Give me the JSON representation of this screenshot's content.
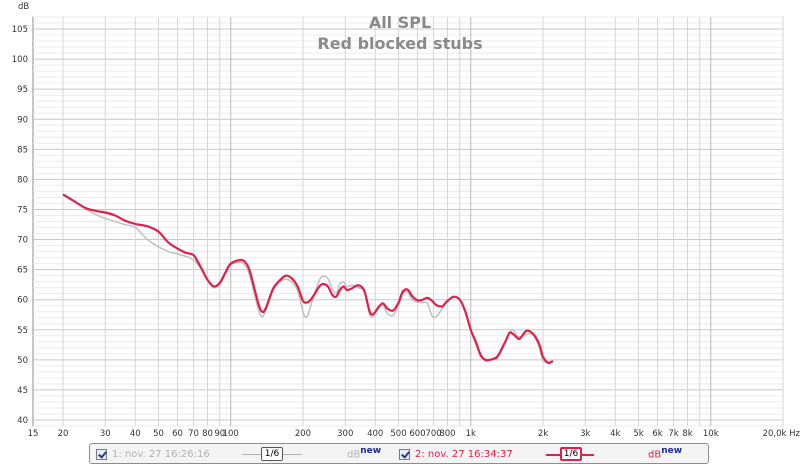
{
  "chart_data": {
    "type": "line",
    "title": "All SPL",
    "subtitle": "Red blocked stubs",
    "y_unit": "dB",
    "x_unit": "Hz",
    "xscale": "log",
    "xlim": [
      15,
      20000
    ],
    "ylim": [
      39,
      107
    ],
    "grid": true,
    "y_ticks": [
      40,
      45,
      50,
      55,
      60,
      65,
      70,
      75,
      80,
      85,
      90,
      95,
      100,
      105
    ],
    "x_ticks": [
      {
        "v": 15,
        "label": "15"
      },
      {
        "v": 20,
        "label": "20"
      },
      {
        "v": 30,
        "label": "30"
      },
      {
        "v": 40,
        "label": "40"
      },
      {
        "v": 50,
        "label": "50"
      },
      {
        "v": 60,
        "label": "60"
      },
      {
        "v": 70,
        "label": "70"
      },
      {
        "v": 80,
        "label": "80"
      },
      {
        "v": 90,
        "label": "90"
      },
      {
        "v": 100,
        "label": "100"
      },
      {
        "v": 200,
        "label": "200"
      },
      {
        "v": 300,
        "label": "300"
      },
      {
        "v": 400,
        "label": "400"
      },
      {
        "v": 500,
        "label": "500"
      },
      {
        "v": 600,
        "label": "600"
      },
      {
        "v": 700,
        "label": "700"
      },
      {
        "v": 800,
        "label": "800"
      },
      {
        "v": 1000,
        "label": "1k"
      },
      {
        "v": 2000,
        "label": "2k"
      },
      {
        "v": 3000,
        "label": "3k"
      },
      {
        "v": 4000,
        "label": "4k"
      },
      {
        "v": 5000,
        "label": "5k"
      },
      {
        "v": 6000,
        "label": "6k"
      },
      {
        "v": 7000,
        "label": "7k"
      },
      {
        "v": 8000,
        "label": "8k"
      },
      {
        "v": 10000,
        "label": "10k"
      },
      {
        "v": 20000,
        "label": "20,0k Hz"
      }
    ],
    "series": [
      {
        "name": "1: nov. 27 16:26:16",
        "color": "#c0c0c0",
        "points": [
          [
            20,
            77.5
          ],
          [
            22,
            76.5
          ],
          [
            25,
            75.0
          ],
          [
            28,
            74.0
          ],
          [
            30,
            73.5
          ],
          [
            33,
            73.0
          ],
          [
            36,
            72.5
          ],
          [
            40,
            72.0
          ],
          [
            45,
            70.0
          ],
          [
            50,
            68.8
          ],
          [
            55,
            68.0
          ],
          [
            60,
            67.6
          ],
          [
            65,
            67.2
          ],
          [
            70,
            66.6
          ],
          [
            75,
            65.2
          ],
          [
            80,
            63.2
          ],
          [
            85,
            62.0
          ],
          [
            90,
            62.6
          ],
          [
            95,
            64.3
          ],
          [
            100,
            65.8
          ],
          [
            110,
            66.2
          ],
          [
            115,
            65.6
          ],
          [
            120,
            64.0
          ],
          [
            130,
            58.5
          ],
          [
            135,
            57.2
          ],
          [
            140,
            58.2
          ],
          [
            150,
            61.5
          ],
          [
            160,
            63.0
          ],
          [
            170,
            63.4
          ],
          [
            180,
            62.9
          ],
          [
            190,
            61.5
          ],
          [
            200,
            58.0
          ],
          [
            205,
            57.1
          ],
          [
            210,
            57.5
          ],
          [
            220,
            60.2
          ],
          [
            235,
            63.4
          ],
          [
            245,
            63.9
          ],
          [
            255,
            63.4
          ],
          [
            265,
            61.8
          ],
          [
            275,
            61.0
          ],
          [
            285,
            62.6
          ],
          [
            295,
            62.9
          ],
          [
            305,
            62.2
          ],
          [
            320,
            62.4
          ],
          [
            340,
            62.0
          ],
          [
            360,
            61.3
          ],
          [
            380,
            57.5
          ],
          [
            395,
            57.3
          ],
          [
            410,
            58.5
          ],
          [
            430,
            59.1
          ],
          [
            450,
            57.7
          ],
          [
            475,
            57.4
          ],
          [
            500,
            59.0
          ],
          [
            520,
            60.9
          ],
          [
            545,
            61.3
          ],
          [
            570,
            60.0
          ],
          [
            600,
            59.6
          ],
          [
            630,
            59.5
          ],
          [
            660,
            59.4
          ],
          [
            690,
            57.3
          ],
          [
            720,
            57.2
          ],
          [
            760,
            58.5
          ],
          [
            800,
            59.8
          ],
          [
            850,
            60.4
          ],
          [
            900,
            60.0
          ],
          [
            950,
            58.0
          ],
          [
            1000,
            55.0
          ],
          [
            1050,
            52.6
          ],
          [
            1100,
            50.5
          ],
          [
            1150,
            49.8
          ],
          [
            1200,
            49.9
          ],
          [
            1250,
            50.1
          ],
          [
            1300,
            50.5
          ],
          [
            1400,
            53.0
          ],
          [
            1450,
            54.5
          ],
          [
            1500,
            55.0
          ],
          [
            1550,
            54.1
          ],
          [
            1600,
            53.8
          ],
          [
            1700,
            54.2
          ],
          [
            1800,
            54.3
          ],
          [
            1900,
            52.8
          ],
          [
            1950,
            51.5
          ],
          [
            2000,
            49.8
          ],
          [
            2100,
            49.6
          ],
          [
            2200,
            49.8
          ]
        ]
      },
      {
        "name": "2: nov. 27 16:34:37",
        "color": "#e0204a",
        "points": [
          [
            20,
            77.5
          ],
          [
            22,
            76.5
          ],
          [
            25,
            75.2
          ],
          [
            28,
            74.7
          ],
          [
            30,
            74.5
          ],
          [
            33,
            74.0
          ],
          [
            36,
            73.2
          ],
          [
            40,
            72.6
          ],
          [
            45,
            72.2
          ],
          [
            50,
            71.3
          ],
          [
            55,
            69.5
          ],
          [
            60,
            68.5
          ],
          [
            65,
            67.8
          ],
          [
            70,
            67.4
          ],
          [
            75,
            65.4
          ],
          [
            80,
            63.3
          ],
          [
            85,
            62.2
          ],
          [
            90,
            62.8
          ],
          [
            95,
            64.5
          ],
          [
            100,
            66.0
          ],
          [
            110,
            66.6
          ],
          [
            115,
            66.2
          ],
          [
            120,
            64.8
          ],
          [
            130,
            59.5
          ],
          [
            135,
            58.0
          ],
          [
            140,
            58.6
          ],
          [
            150,
            61.8
          ],
          [
            160,
            63.2
          ],
          [
            170,
            64.0
          ],
          [
            180,
            63.5
          ],
          [
            190,
            62.2
          ],
          [
            200,
            59.8
          ],
          [
            210,
            59.6
          ],
          [
            220,
            60.5
          ],
          [
            235,
            62.3
          ],
          [
            245,
            62.6
          ],
          [
            255,
            62.1
          ],
          [
            265,
            60.8
          ],
          [
            275,
            60.5
          ],
          [
            285,
            61.6
          ],
          [
            295,
            62.2
          ],
          [
            305,
            61.6
          ],
          [
            320,
            61.9
          ],
          [
            340,
            62.4
          ],
          [
            360,
            61.5
          ],
          [
            380,
            57.9
          ],
          [
            395,
            57.7
          ],
          [
            410,
            58.6
          ],
          [
            430,
            59.4
          ],
          [
            450,
            58.5
          ],
          [
            475,
            58.2
          ],
          [
            500,
            59.5
          ],
          [
            520,
            61.3
          ],
          [
            545,
            61.7
          ],
          [
            570,
            60.6
          ],
          [
            600,
            59.9
          ],
          [
            630,
            60.0
          ],
          [
            660,
            60.3
          ],
          [
            690,
            59.8
          ],
          [
            720,
            59.1
          ],
          [
            760,
            58.9
          ],
          [
            800,
            59.8
          ],
          [
            850,
            60.5
          ],
          [
            900,
            60.0
          ],
          [
            950,
            58.0
          ],
          [
            1000,
            55.0
          ],
          [
            1050,
            53.0
          ],
          [
            1100,
            50.8
          ],
          [
            1150,
            50.0
          ],
          [
            1200,
            50.0
          ],
          [
            1250,
            50.2
          ],
          [
            1300,
            50.7
          ],
          [
            1400,
            53.2
          ],
          [
            1450,
            54.5
          ],
          [
            1500,
            54.3
          ],
          [
            1550,
            53.8
          ],
          [
            1600,
            53.5
          ],
          [
            1700,
            54.8
          ],
          [
            1800,
            54.5
          ],
          [
            1900,
            53.2
          ],
          [
            1950,
            52.0
          ],
          [
            2000,
            50.5
          ],
          [
            2100,
            49.5
          ],
          [
            2200,
            49.8
          ]
        ]
      }
    ]
  },
  "legend": {
    "item1": {
      "label": "1: nov. 27 16:26:16",
      "smoothing": "1/6",
      "db_text": "dB",
      "new_text": "new",
      "color": "#b0b0b0"
    },
    "item2": {
      "label": "2: nov. 27 16:34:37",
      "smoothing": "1/6",
      "db_text": "dB",
      "new_text": "new",
      "color": "#e0204a"
    }
  }
}
